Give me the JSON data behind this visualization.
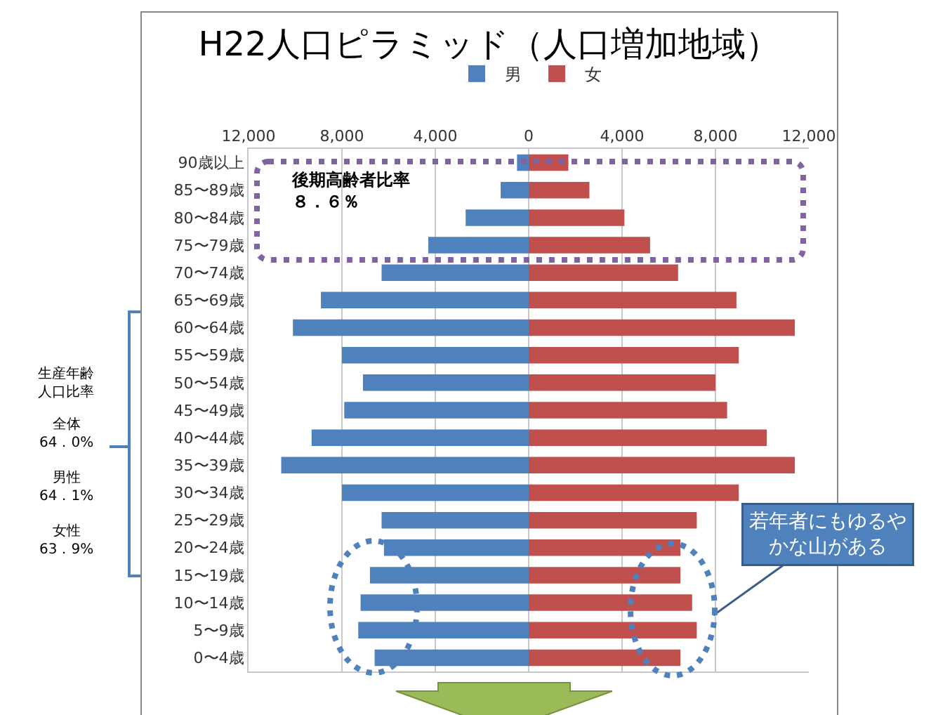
{
  "chart_data": {
    "type": "bar",
    "title": "H22人口ピラミッド（人口増加地域）",
    "orientation": "horizontal",
    "categories": [
      "90歳以上",
      "85〜89歳",
      "80〜84歳",
      "75〜79歳",
      "70〜74歳",
      "65〜69歳",
      "60〜64歳",
      "55〜59歳",
      "50〜54歳",
      "45〜49歳",
      "40〜44歳",
      "35〜39歳",
      "30〜34歳",
      "25〜29歳",
      "20〜24歳",
      "15〜19歳",
      "10〜14歳",
      "5〜9歳",
      "0〜4歳"
    ],
    "series": [
      {
        "name": "男",
        "color": "#4f81bd",
        "values": [
          -500,
          -1200,
          -2700,
          -4300,
          -6300,
          -8900,
          -10100,
          -8000,
          -7100,
          -7900,
          -9300,
          -10600,
          -8000,
          -6300,
          -6200,
          -6800,
          -7200,
          -7300,
          -6600
        ]
      },
      {
        "name": "女",
        "color": "#c0504d",
        "values": [
          1700,
          2600,
          4100,
          5200,
          6400,
          8900,
          11400,
          9000,
          8000,
          8500,
          10200,
          11400,
          9000,
          7200,
          6500,
          6500,
          7000,
          7200,
          6500
        ]
      }
    ],
    "xlim": [
      -12000,
      12000
    ],
    "xticks": [
      {
        "value": -12000,
        "label": "12,000"
      },
      {
        "value": -8000,
        "label": "8,000"
      },
      {
        "value": -4000,
        "label": "4,000"
      },
      0,
      {
        "value": 4000,
        "label": "4,000"
      },
      {
        "value": 8000,
        "label": "8,000"
      },
      {
        "value": 12000,
        "label": "12,000"
      }
    ],
    "grid": "x",
    "legend": "top",
    "stacked": true,
    "annotations": [
      "後期高齢者比率８．６％",
      "生産年齢人口比率",
      "全体\n64．0%",
      "男性\n64．1%",
      "女性\n63．9%",
      "若年者にもゆるやかな山がある"
    ]
  }
}
